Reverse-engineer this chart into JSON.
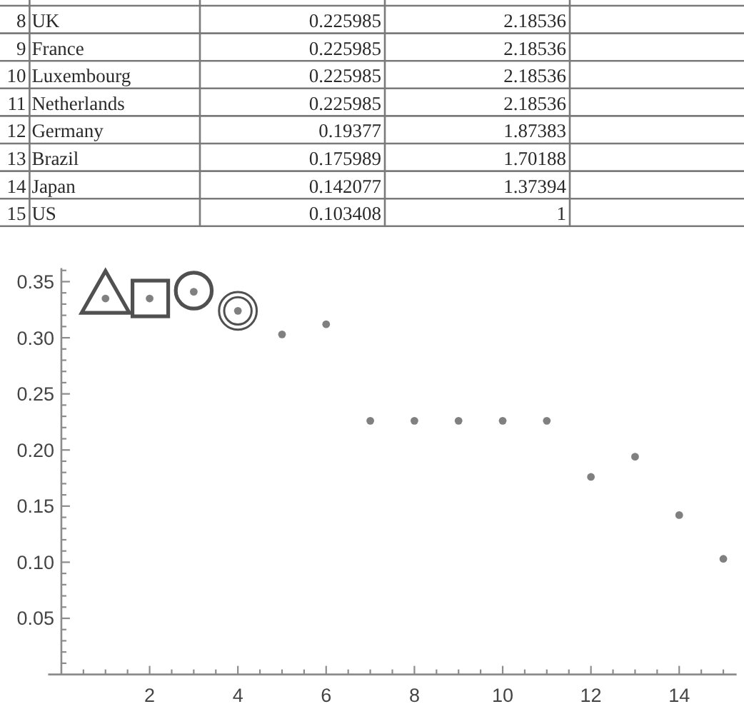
{
  "chart_data": [
    {
      "type": "heatmap",
      "categories": [
        null,
        null
      ],
      "y_categories": [
        "8",
        "9",
        "10",
        "11",
        "12",
        "13",
        "14",
        "15"
      ],
      "y2_categories": [
        "UK",
        "France",
        "Luxembourg",
        "Netherlands",
        "Germany",
        "Brazil",
        "Japan",
        "US"
      ],
      "cells": [
        [
          0.225985,
          2.18536
        ],
        [
          0.225985,
          2.18536
        ],
        [
          0.225985,
          2.18536
        ],
        [
          0.225985,
          2.18536
        ],
        [
          0.19377,
          1.87383
        ],
        [
          0.175989,
          1.70188
        ],
        [
          0.142077,
          1.37394
        ],
        [
          0.103408,
          1
        ]
      ],
      "data_labels": true
    },
    {
      "type": "scatter",
      "x": [
        1,
        2,
        3,
        4,
        5,
        6,
        7,
        8,
        9,
        10,
        11,
        12,
        13,
        14,
        15
      ],
      "values": [
        0.335,
        0.335,
        0.341,
        0.324,
        0.303,
        0.312,
        0.226,
        0.226,
        0.226,
        0.226,
        0.226,
        0.176,
        0.194,
        0.142,
        0.103
      ],
      "color": "#808080",
      "marker": "circle",
      "xlim": [
        -0.3,
        15.3
      ],
      "ylim": [
        0,
        0.362
      ],
      "xticks": [
        {
          "value": 0.5,
          "label": null
        },
        {
          "value": 1,
          "label": null
        },
        {
          "value": 1.5,
          "label": null
        },
        2,
        {
          "value": 2.5,
          "label": null
        },
        {
          "value": 3,
          "label": null
        },
        {
          "value": 3.5,
          "label": null
        },
        4,
        {
          "value": 4.5,
          "label": null
        },
        {
          "value": 5,
          "label": null
        },
        {
          "value": 5.5,
          "label": null
        },
        6,
        {
          "value": 6.5,
          "label": null
        },
        {
          "value": 7,
          "label": null
        },
        {
          "value": 7.5,
          "label": null
        },
        8,
        {
          "value": 8.5,
          "label": null
        },
        {
          "value": 9,
          "label": null
        },
        {
          "value": 9.5,
          "label": null
        },
        10,
        {
          "value": 10.5,
          "label": null
        },
        {
          "value": 11,
          "label": null
        },
        {
          "value": 11.5,
          "label": null
        },
        12,
        {
          "value": 12.5,
          "label": null
        },
        {
          "value": 13,
          "label": null
        },
        {
          "value": 13.5,
          "label": null
        },
        14,
        {
          "value": 14.5,
          "label": null
        },
        {
          "value": 15,
          "label": null
        }
      ],
      "yticks": [
        {
          "value": 0.01,
          "label": null
        },
        {
          "value": 0.02,
          "label": null
        },
        {
          "value": 0.03,
          "label": null
        },
        {
          "value": 0.04,
          "label": null
        },
        0.05,
        {
          "value": 0.06,
          "label": null
        },
        {
          "value": 0.07,
          "label": null
        },
        {
          "value": 0.08,
          "label": null
        },
        {
          "value": 0.09,
          "label": null
        },
        {
          "value": 0.1,
          "label": "0.10"
        },
        {
          "value": 0.11,
          "label": null
        },
        {
          "value": 0.12,
          "label": null
        },
        {
          "value": 0.13,
          "label": null
        },
        {
          "value": 0.14,
          "label": null
        },
        0.15,
        {
          "value": 0.16,
          "label": null
        },
        {
          "value": 0.17,
          "label": null
        },
        {
          "value": 0.18,
          "label": null
        },
        {
          "value": 0.19,
          "label": null
        },
        {
          "value": 0.2,
          "label": "0.20"
        },
        {
          "value": 0.21,
          "label": null
        },
        {
          "value": 0.22,
          "label": null
        },
        {
          "value": 0.23,
          "label": null
        },
        {
          "value": 0.24,
          "label": null
        },
        0.25,
        {
          "value": 0.26,
          "label": null
        },
        {
          "value": 0.27,
          "label": null
        },
        {
          "value": 0.28,
          "label": null
        },
        {
          "value": 0.29,
          "label": null
        },
        {
          "value": 0.3,
          "label": "0.30"
        },
        {
          "value": 0.31,
          "label": null
        },
        {
          "value": 0.32,
          "label": null
        },
        {
          "value": 0.33,
          "label": null
        },
        {
          "value": 0.34,
          "label": null
        },
        0.35,
        {
          "value": 0.36,
          "label": null
        }
      ]
    }
  ]
}
